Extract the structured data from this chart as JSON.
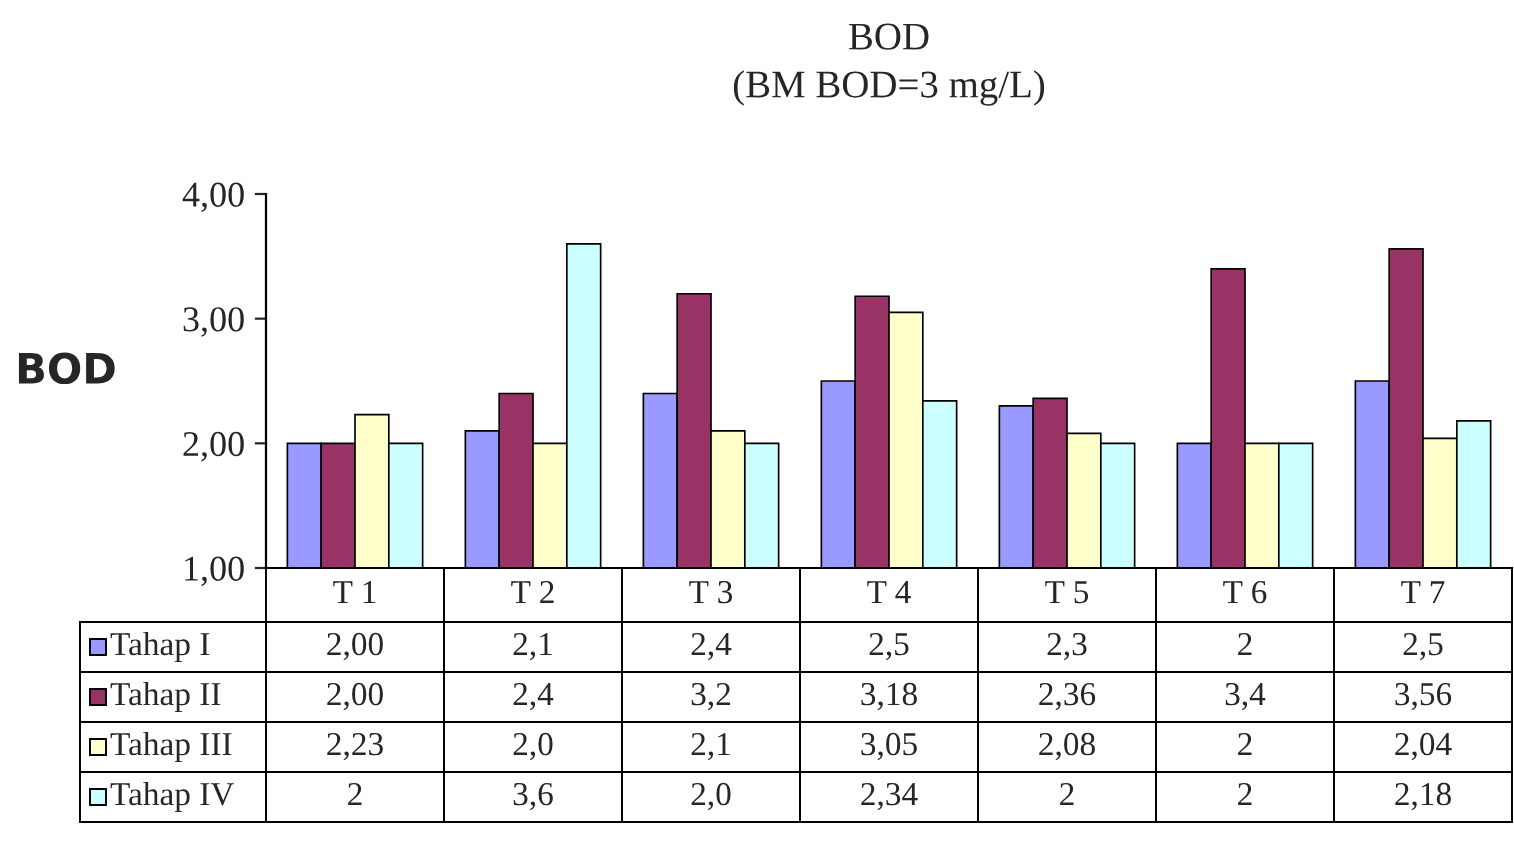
{
  "chart_data": {
    "type": "bar",
    "title": "BOD",
    "subtitle": "(BM BOD=3 mg/L)",
    "ylabel": "BOD",
    "categories": [
      "T 1",
      "T 2",
      "T 3",
      "T 4",
      "T 5",
      "T 6",
      "T 7"
    ],
    "series": [
      {
        "name": "Tahap I",
        "color": "#9999ff",
        "values": [
          2.0,
          2.1,
          2.4,
          2.5,
          2.3,
          2,
          2.5
        ],
        "value_labels": [
          "2,00",
          "2,1",
          "2,4",
          "2,5",
          "2,3",
          "2",
          "2,5"
        ]
      },
      {
        "name": "Tahap II",
        "color": "#993366",
        "values": [
          2.0,
          2.4,
          3.2,
          3.18,
          2.36,
          3.4,
          3.56
        ],
        "value_labels": [
          "2,00",
          "2,4",
          "3,2",
          "3,18",
          "2,36",
          "3,4",
          "3,56"
        ]
      },
      {
        "name": "Tahap III",
        "color": "#ffffcc",
        "values": [
          2.23,
          2.0,
          2.1,
          3.05,
          2.08,
          2,
          2.04
        ],
        "value_labels": [
          "2,23",
          "2,0",
          "2,1",
          "3,05",
          "2,08",
          "2",
          "2,04"
        ]
      },
      {
        "name": "Tahap IV",
        "color": "#ccffff",
        "values": [
          2,
          3.6,
          2.0,
          2.34,
          2,
          2,
          2.18
        ],
        "value_labels": [
          "2",
          "3,6",
          "2,0",
          "2,34",
          "2",
          "2",
          "2,18"
        ]
      }
    ],
    "ylim": [
      1,
      4
    ],
    "yticks": [
      {
        "value": 1,
        "label": "1,00"
      },
      {
        "value": 2,
        "label": "2,00"
      },
      {
        "value": 3,
        "label": "3,00"
      },
      {
        "value": 4,
        "label": "4,00"
      }
    ],
    "legend": "bottom"
  }
}
